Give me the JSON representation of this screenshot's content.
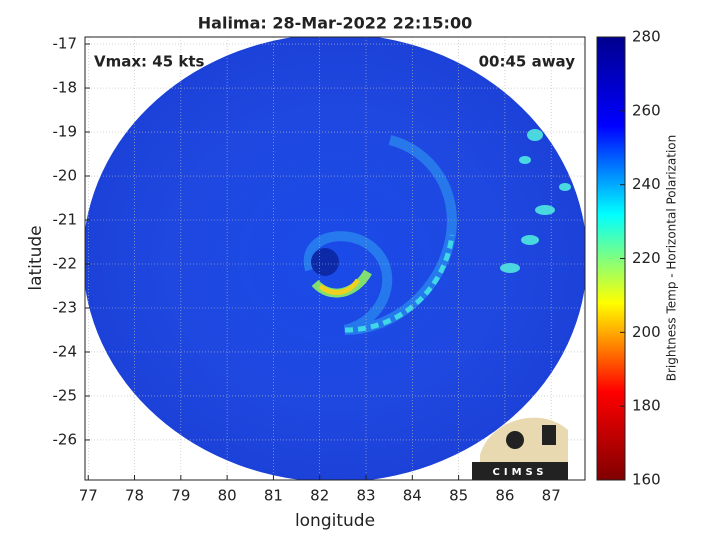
{
  "chart_data": {
    "type": "image",
    "title": "Halima: 28-Mar-2022 22:15:00",
    "xlabel": "longitude",
    "ylabel": "latitude",
    "annotations": [
      "Vmax: 45 kts",
      "00:45 away"
    ],
    "logo_text": "CIMSS",
    "xlim": [
      76.93,
      87.73
    ],
    "xticks": [
      77,
      78,
      79,
      80,
      81,
      82,
      83,
      84,
      85,
      86,
      87
    ],
    "ylim": [
      -26.91,
      -16.84
    ],
    "yticks": [
      -26,
      -25,
      -24,
      -23,
      -22,
      -21,
      -20,
      -19,
      -18,
      -17
    ],
    "grid": true,
    "colorbar": {
      "label": "Brightness Temp - Horizontal Polarization",
      "lim": [
        160,
        280
      ],
      "ticks": [
        160,
        180,
        200,
        220,
        240,
        260,
        280
      ],
      "colormap": [
        "#800000",
        "#ff0000",
        "#ffff00",
        "#00ffff",
        "#0000ff",
        "#00008f"
      ]
    }
  }
}
